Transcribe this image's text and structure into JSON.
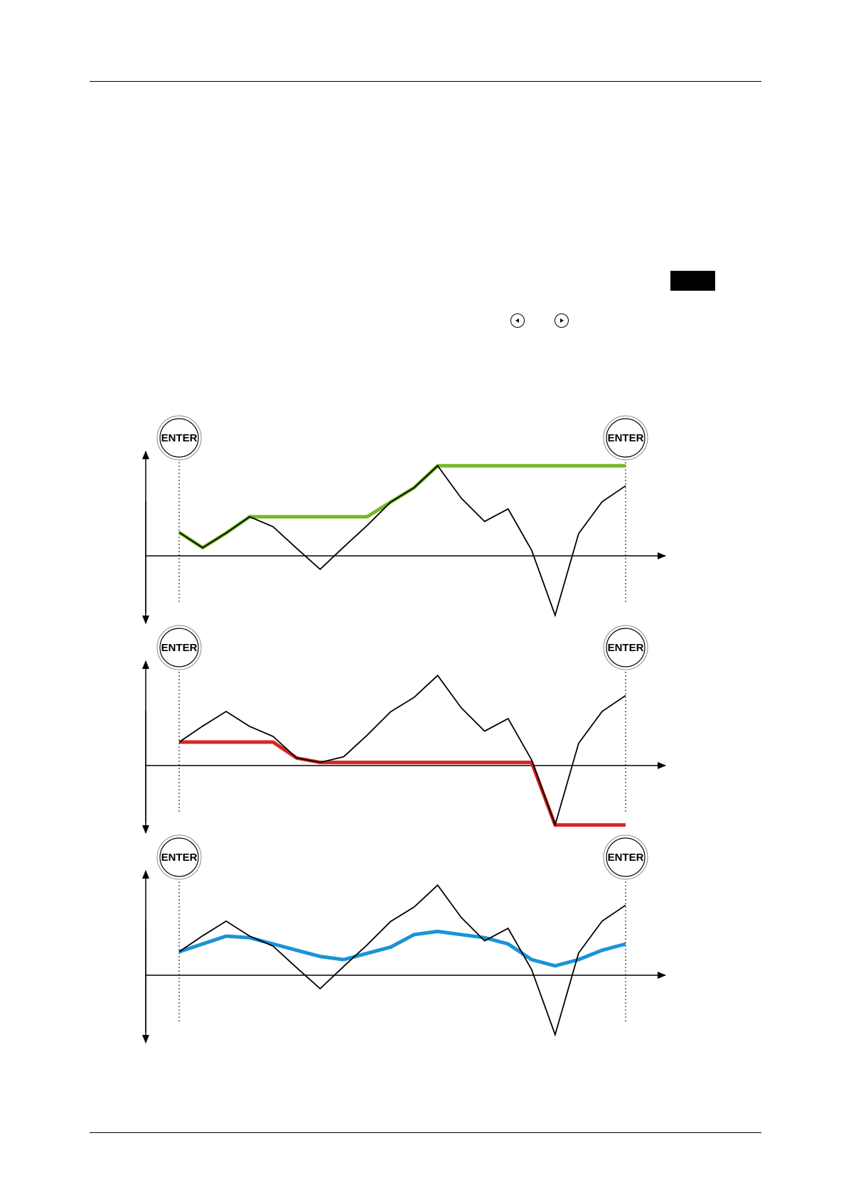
{
  "enter_button": {
    "label": "ENTER"
  },
  "colors": {
    "price": "#000000",
    "peak_hold": "#76b82a",
    "valley_hold": "#d7261f",
    "average": "#1a93d7",
    "black_box": "#000000"
  },
  "icons": {
    "left_nav": "arrow-left-circle-icon",
    "right_nav": "arrow-right-circle-icon",
    "enter": "enter-button-icon"
  },
  "panels": [
    {
      "name": "panel-peak-hold",
      "overlay": "peak_hold",
      "signal": [
        0.75,
        0.26,
        0.73,
        1.25,
        0.93,
        0.24,
        -0.43,
        0.28,
        0.97,
        1.72,
        2.18,
        2.88,
        1.85,
        1.1,
        1.5,
        0.18,
        -1.9,
        0.71,
        1.73,
        2.24
      ],
      "overlay_values": [
        0.75,
        0.26,
        0.73,
        1.25,
        1.25,
        1.25,
        1.25,
        1.25,
        1.25,
        1.72,
        2.18,
        2.88,
        2.88,
        2.88,
        2.88,
        2.88,
        2.88,
        2.88,
        2.88,
        2.88
      ]
    },
    {
      "name": "panel-valley-hold",
      "overlay": "valley_hold",
      "signal": [
        0.75,
        1.26,
        1.73,
        1.25,
        0.93,
        0.24,
        0.1,
        0.28,
        0.97,
        1.72,
        2.18,
        2.88,
        1.85,
        1.1,
        1.5,
        0.18,
        -1.9,
        0.71,
        1.73,
        2.24
      ],
      "overlay_values": [
        0.75,
        0.75,
        0.75,
        0.75,
        0.75,
        0.24,
        0.1,
        0.1,
        0.1,
        0.1,
        0.1,
        0.1,
        0.1,
        0.1,
        0.1,
        0.1,
        -1.9,
        -1.9,
        -1.9,
        -1.9
      ]
    },
    {
      "name": "panel-average",
      "overlay": "average",
      "signal": [
        0.75,
        1.26,
        1.73,
        1.25,
        0.93,
        0.24,
        -0.43,
        0.28,
        0.97,
        1.72,
        2.18,
        2.88,
        1.85,
        1.1,
        1.5,
        0.18,
        -1.9,
        0.71,
        1.73,
        2.24
      ],
      "overlay_values": [
        0.75,
        1.0,
        1.25,
        1.2,
        1.0,
        0.8,
        0.6,
        0.5,
        0.7,
        0.9,
        1.3,
        1.4,
        1.3,
        1.2,
        1.0,
        0.5,
        0.3,
        0.5,
        0.8,
        1.0
      ]
    }
  ]
}
